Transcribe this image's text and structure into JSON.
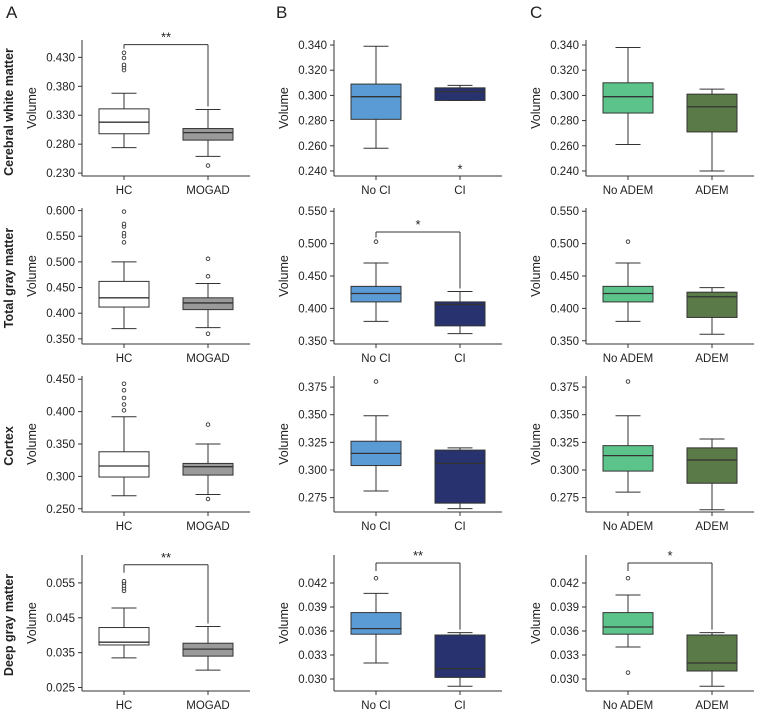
{
  "panel_labels": [
    "A",
    "B",
    "C"
  ],
  "row_labels": [
    "Cerebral white matter",
    "Total gray matter",
    "Cortex",
    "Deep gray matter"
  ],
  "colors": {
    "HC": "#ffffff",
    "MOGAD": "#9a9a9a",
    "No CI": "#5b9bd5",
    "CI": "#27326e",
    "No ADEM": "#5cc48a",
    "ADEM": "#5a7a48",
    "stroke": "#333333"
  },
  "chart_data": [
    {
      "id": "A1",
      "type": "box",
      "row": 0,
      "col": 0,
      "ylabel": "Volume",
      "ylim": [
        0.225,
        0.46
      ],
      "yticks": [
        "0.230",
        "0.280",
        "0.330",
        "0.380",
        "0.430"
      ],
      "categories": [
        "HC",
        "MOGAD"
      ],
      "boxes": [
        {
          "min": 0.274,
          "q1": 0.298,
          "median": 0.318,
          "q3": 0.341,
          "max": 0.368,
          "outliers": [
            0.408,
            0.413,
            0.417,
            0.429,
            0.438
          ]
        },
        {
          "min": 0.259,
          "q1": 0.287,
          "median": 0.3,
          "q3": 0.307,
          "max": 0.34,
          "outliers": [
            0.243
          ]
        }
      ],
      "significance": {
        "label": "**",
        "from": 0,
        "to": 1,
        "at": 0.452
      }
    },
    {
      "id": "B1",
      "type": "box",
      "row": 0,
      "col": 1,
      "ylabel": "Volume",
      "ylim": [
        0.236,
        0.344
      ],
      "yticks": [
        "0.240",
        "0.260",
        "0.280",
        "0.300",
        "0.320",
        "0.340"
      ],
      "categories": [
        "No CI",
        "CI"
      ],
      "boxes": [
        {
          "min": 0.258,
          "q1": 0.281,
          "median": 0.299,
          "q3": 0.309,
          "max": 0.339,
          "outliers": []
        },
        {
          "min": 0.296,
          "q1": 0.296,
          "median": 0.303,
          "q3": 0.306,
          "max": 0.308,
          "outliers": []
        }
      ],
      "note": {
        "label": "*",
        "category": 1,
        "at": 0.241
      }
    },
    {
      "id": "C1",
      "type": "box",
      "row": 0,
      "col": 2,
      "ylabel": "Volume",
      "ylim": [
        0.236,
        0.344
      ],
      "yticks": [
        "0.240",
        "0.260",
        "0.280",
        "0.300",
        "0.320",
        "0.340"
      ],
      "categories": [
        "No ADEM",
        "ADEM"
      ],
      "boxes": [
        {
          "min": 0.261,
          "q1": 0.286,
          "median": 0.299,
          "q3": 0.31,
          "max": 0.338,
          "outliers": []
        },
        {
          "min": 0.24,
          "q1": 0.271,
          "median": 0.291,
          "q3": 0.301,
          "max": 0.305,
          "outliers": []
        }
      ]
    },
    {
      "id": "A2",
      "type": "box",
      "row": 1,
      "col": 0,
      "ylabel": "Volume",
      "ylim": [
        0.34,
        0.605
      ],
      "yticks": [
        "0.350",
        "0.400",
        "0.450",
        "0.500",
        "0.550",
        "0.600"
      ],
      "categories": [
        "HC",
        "MOGAD"
      ],
      "boxes": [
        {
          "min": 0.37,
          "q1": 0.412,
          "median": 0.43,
          "q3": 0.462,
          "max": 0.5,
          "outliers": [
            0.538,
            0.55,
            0.556,
            0.569,
            0.574,
            0.598
          ]
        },
        {
          "min": 0.372,
          "q1": 0.407,
          "median": 0.42,
          "q3": 0.43,
          "max": 0.458,
          "outliers": [
            0.36,
            0.472,
            0.506
          ]
        }
      ]
    },
    {
      "id": "B2",
      "type": "box",
      "row": 1,
      "col": 1,
      "ylabel": "Volume",
      "ylim": [
        0.345,
        0.555
      ],
      "yticks": [
        "0.350",
        "0.400",
        "0.450",
        "0.500",
        "0.550"
      ],
      "categories": [
        "No CI",
        "CI"
      ],
      "boxes": [
        {
          "min": 0.38,
          "q1": 0.41,
          "median": 0.423,
          "q3": 0.434,
          "max": 0.47,
          "outliers": [
            0.503
          ]
        },
        {
          "min": 0.361,
          "q1": 0.373,
          "median": 0.406,
          "q3": 0.41,
          "max": 0.426,
          "outliers": []
        }
      ],
      "significance": {
        "label": "*",
        "from": 0,
        "to": 1,
        "at": 0.518
      }
    },
    {
      "id": "C2",
      "type": "box",
      "row": 1,
      "col": 2,
      "ylabel": "Volume",
      "ylim": [
        0.345,
        0.555
      ],
      "yticks": [
        "0.350",
        "0.400",
        "0.450",
        "0.500",
        "0.550"
      ],
      "categories": [
        "No ADEM",
        "ADEM"
      ],
      "boxes": [
        {
          "min": 0.38,
          "q1": 0.41,
          "median": 0.423,
          "q3": 0.434,
          "max": 0.47,
          "outliers": [
            0.503
          ]
        },
        {
          "min": 0.36,
          "q1": 0.386,
          "median": 0.418,
          "q3": 0.425,
          "max": 0.432,
          "outliers": []
        }
      ]
    },
    {
      "id": "A3",
      "type": "box",
      "row": 2,
      "col": 0,
      "ylabel": "Volume",
      "ylim": [
        0.245,
        0.455
      ],
      "yticks": [
        "0.250",
        "0.300",
        "0.350",
        "0.400",
        "0.450"
      ],
      "categories": [
        "HC",
        "MOGAD"
      ],
      "boxes": [
        {
          "min": 0.27,
          "q1": 0.299,
          "median": 0.316,
          "q3": 0.338,
          "max": 0.392,
          "outliers": [
            0.402,
            0.411,
            0.421,
            0.433,
            0.443
          ]
        },
        {
          "min": 0.272,
          "q1": 0.302,
          "median": 0.315,
          "q3": 0.32,
          "max": 0.35,
          "outliers": [
            0.265,
            0.38
          ]
        }
      ]
    },
    {
      "id": "B3",
      "type": "box",
      "row": 2,
      "col": 1,
      "ylabel": "Volume",
      "ylim": [
        0.262,
        0.385
      ],
      "yticks": [
        "0.275",
        "0.300",
        "0.325",
        "0.350",
        "0.375"
      ],
      "categories": [
        "No CI",
        "CI"
      ],
      "boxes": [
        {
          "min": 0.281,
          "q1": 0.304,
          "median": 0.315,
          "q3": 0.326,
          "max": 0.349,
          "outliers": [
            0.38
          ]
        },
        {
          "min": 0.265,
          "q1": 0.27,
          "median": 0.306,
          "q3": 0.318,
          "max": 0.32,
          "outliers": []
        }
      ]
    },
    {
      "id": "C3",
      "type": "box",
      "row": 2,
      "col": 2,
      "ylabel": "Volume",
      "ylim": [
        0.262,
        0.385
      ],
      "yticks": [
        "0.275",
        "0.300",
        "0.325",
        "0.350",
        "0.375"
      ],
      "categories": [
        "No ADEM",
        "ADEM"
      ],
      "boxes": [
        {
          "min": 0.28,
          "q1": 0.299,
          "median": 0.313,
          "q3": 0.322,
          "max": 0.349,
          "outliers": [
            0.38
          ]
        },
        {
          "min": 0.264,
          "q1": 0.288,
          "median": 0.309,
          "q3": 0.32,
          "max": 0.328,
          "outliers": []
        }
      ]
    },
    {
      "id": "A4",
      "type": "box",
      "row": 3,
      "col": 0,
      "ylabel": "Volume",
      "ylim": [
        0.024,
        0.063
      ],
      "yticks": [
        "0.025",
        "0.035",
        "0.045",
        "0.055"
      ],
      "categories": [
        "HC",
        "MOGAD"
      ],
      "boxes": [
        {
          "min": 0.0335,
          "q1": 0.0372,
          "median": 0.038,
          "q3": 0.0422,
          "max": 0.0478,
          "outliers": [
            0.0527,
            0.0535,
            0.0542,
            0.055,
            0.0555
          ]
        },
        {
          "min": 0.03,
          "q1": 0.034,
          "median": 0.036,
          "q3": 0.0377,
          "max": 0.0425,
          "outliers": []
        }
      ],
      "significance": {
        "label": "**",
        "from": 0,
        "to": 1,
        "at": 0.0602
      }
    },
    {
      "id": "B4",
      "type": "box",
      "row": 3,
      "col": 1,
      "ylabel": "Volume",
      "ylim": [
        0.0285,
        0.0455
      ],
      "yticks": [
        "0.030",
        "0.033",
        "0.036",
        "0.039",
        "0.042"
      ],
      "categories": [
        "No CI",
        "CI"
      ],
      "boxes": [
        {
          "min": 0.032,
          "q1": 0.0356,
          "median": 0.0363,
          "q3": 0.0383,
          "max": 0.0407,
          "outliers": [
            0.0426
          ]
        },
        {
          "min": 0.0291,
          "q1": 0.0302,
          "median": 0.0313,
          "q3": 0.0355,
          "max": 0.0358,
          "outliers": []
        }
      ],
      "significance": {
        "label": "**",
        "from": 0,
        "to": 1,
        "at": 0.0445
      }
    },
    {
      "id": "C4",
      "type": "box",
      "row": 3,
      "col": 2,
      "ylabel": "Volume",
      "ylim": [
        0.0285,
        0.0455
      ],
      "yticks": [
        "0.030",
        "0.033",
        "0.036",
        "0.039",
        "0.042"
      ],
      "categories": [
        "No ADEM",
        "ADEM"
      ],
      "boxes": [
        {
          "min": 0.034,
          "q1": 0.0356,
          "median": 0.0365,
          "q3": 0.0383,
          "max": 0.0405,
          "outliers": [
            0.0308,
            0.0426
          ]
        },
        {
          "min": 0.0291,
          "q1": 0.031,
          "median": 0.032,
          "q3": 0.0355,
          "max": 0.0358,
          "outliers": []
        }
      ],
      "significance": {
        "label": "*",
        "from": 0,
        "to": 1,
        "at": 0.0445
      }
    }
  ]
}
